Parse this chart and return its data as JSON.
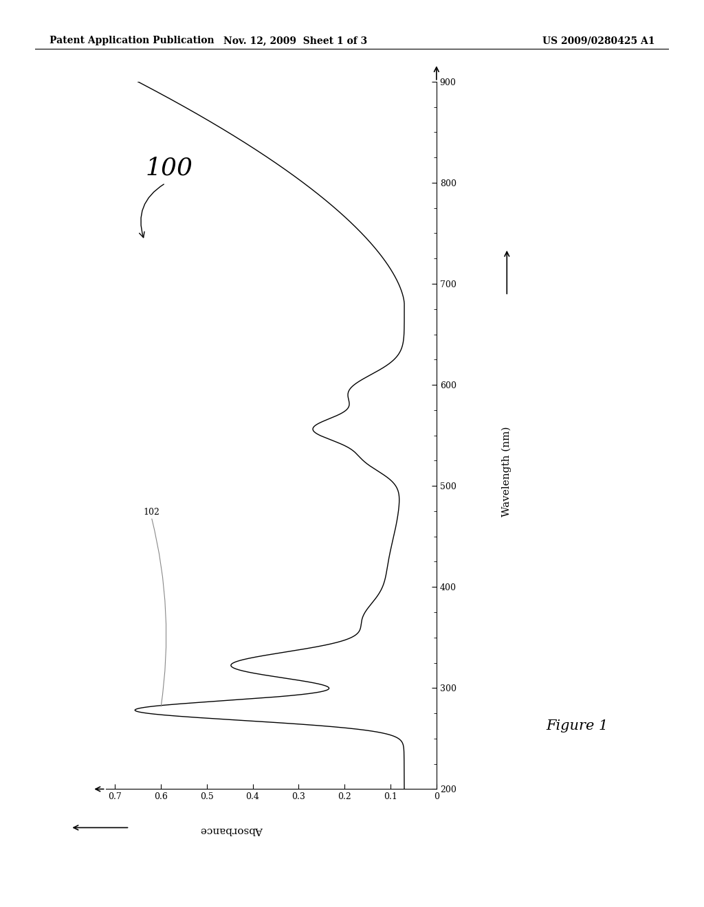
{
  "header_left": "Patent Application Publication",
  "header_mid": "Nov. 12, 2009  Sheet 1 of 3",
  "header_right": "US 2009/0280425 A1",
  "figure_label": "Figure 1",
  "figure_number": "100",
  "curve_label": "102",
  "x_label": "Wavelength (nm)",
  "y_label": "Absorbance",
  "x_ticks": [
    200,
    300,
    400,
    500,
    600,
    700,
    800,
    900
  ],
  "y_ticks": [
    0,
    0.1,
    0.2,
    0.3,
    0.4,
    0.5,
    0.6,
    0.7
  ],
  "x_min": 200,
  "x_max": 900,
  "y_min": 0,
  "y_max": 0.75,
  "background_color": "#ffffff",
  "line_color": "#000000",
  "text_color": "#000000"
}
